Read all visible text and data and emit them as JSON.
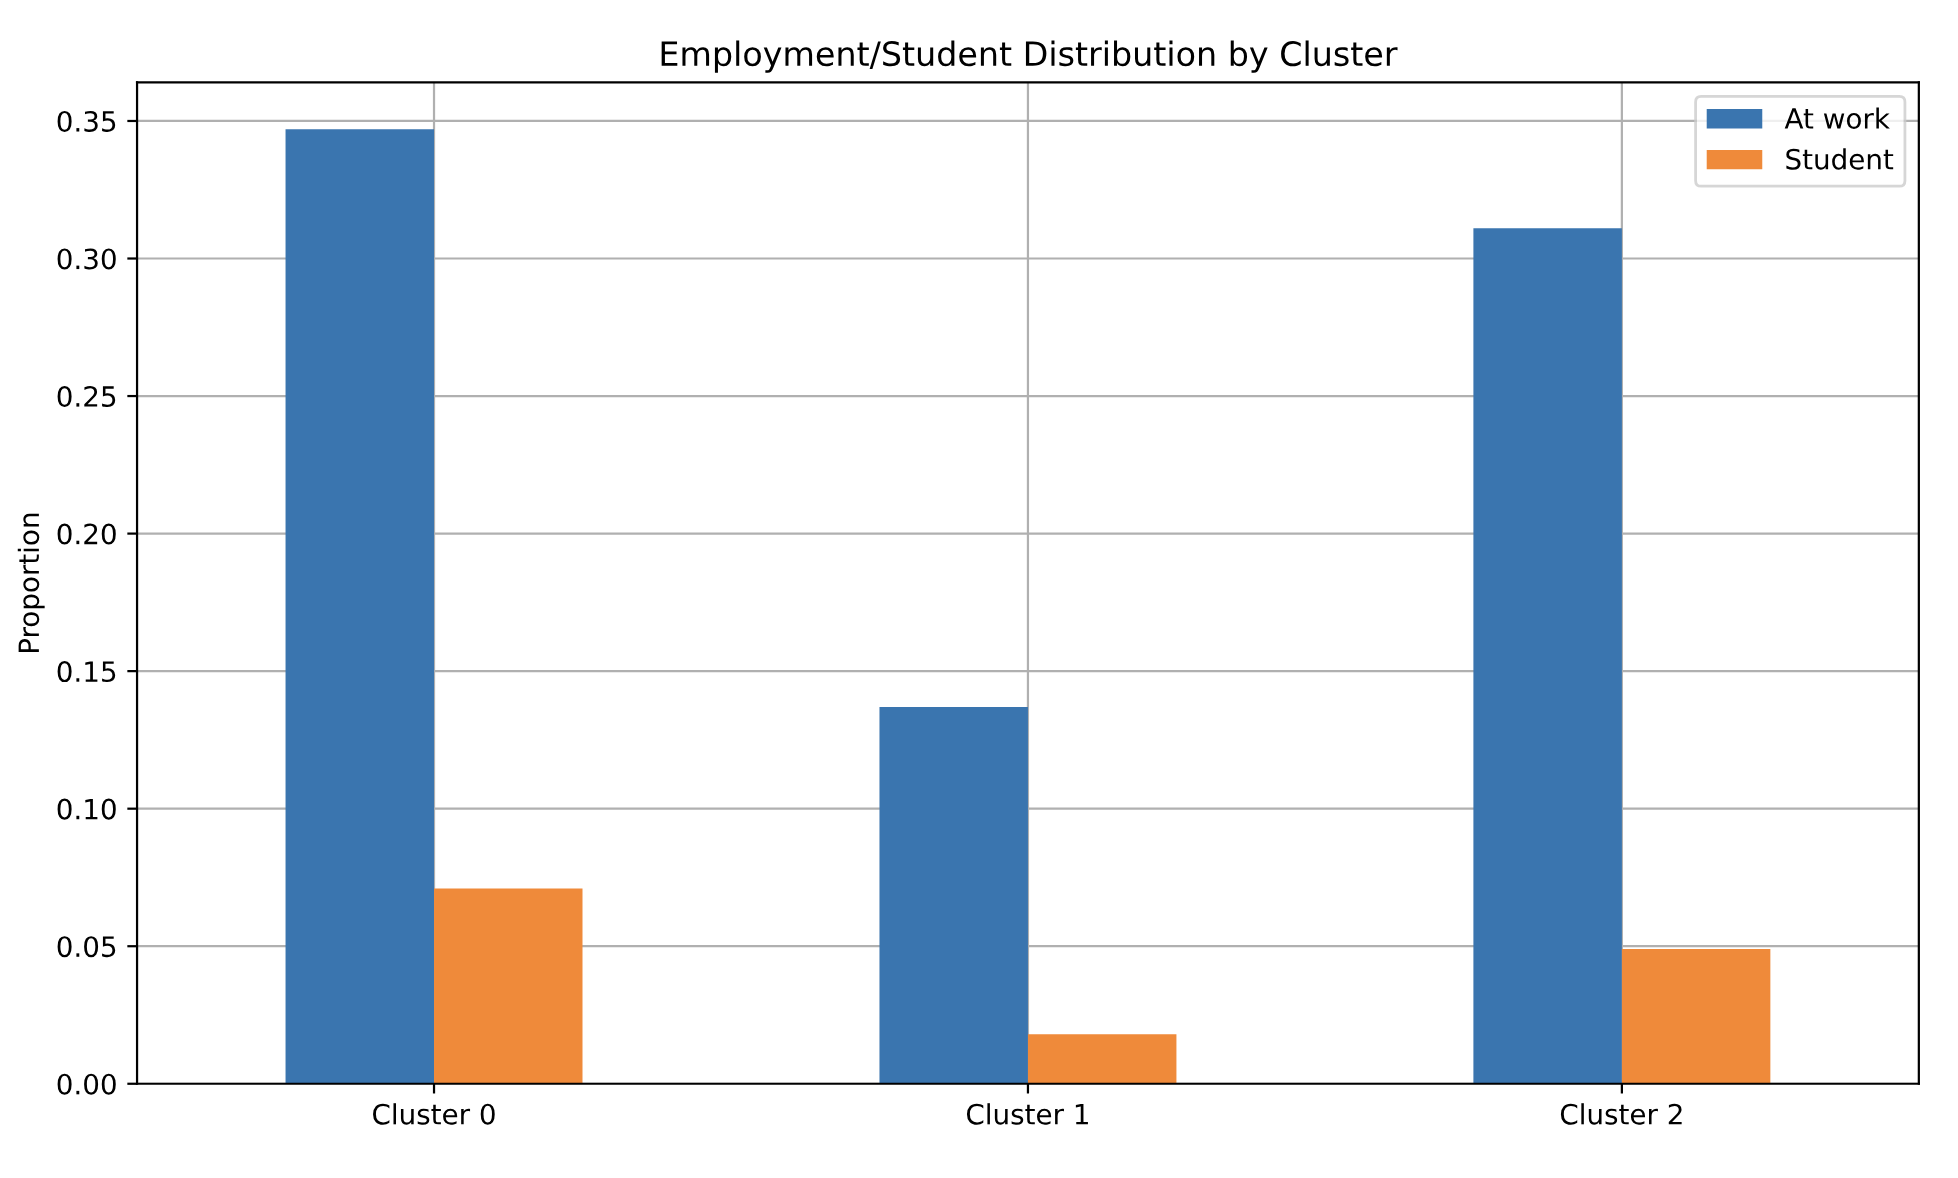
{
  "chart_data": {
    "type": "bar",
    "title": "Employment/Student Distribution by Cluster",
    "ylabel": "Proportion",
    "categories": [
      "Cluster 0",
      "Cluster 1",
      "Cluster 2"
    ],
    "series": [
      {
        "name": "At work",
        "color": "#3a75af",
        "values": [
          0.347,
          0.137,
          0.311
        ]
      },
      {
        "name": "Student",
        "color": "#ef8a3a",
        "values": [
          0.071,
          0.018,
          0.049
        ]
      }
    ],
    "ylim": [
      0,
      0.364
    ],
    "yticks": [
      {
        "value": 0,
        "label": "0.00"
      },
      {
        "value": 0.05,
        "label": "0.05"
      },
      {
        "value": 0.1,
        "label": "0.10"
      },
      {
        "value": 0.15,
        "label": "0.15"
      },
      {
        "value": 0.2,
        "label": "0.20"
      },
      {
        "value": 0.25,
        "label": "0.25"
      },
      {
        "value": 0.3,
        "label": "0.30"
      },
      {
        "value": 0.35,
        "label": "0.35"
      }
    ],
    "grid": true,
    "legend": "top right"
  }
}
